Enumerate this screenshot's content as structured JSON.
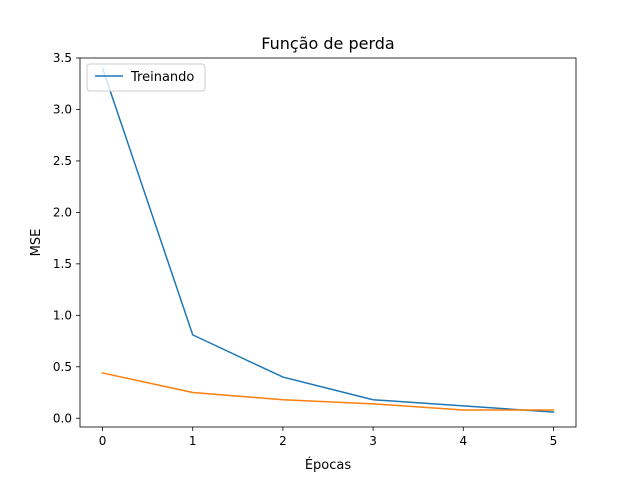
{
  "chart_data": {
    "type": "line",
    "title": "Função de perda",
    "xlabel": "Épocas",
    "ylabel": "MSE",
    "xlim": [
      -0.25,
      5.25
    ],
    "ylim": [
      -0.085,
      3.5
    ],
    "xticks": [
      0,
      1,
      2,
      3,
      4,
      5
    ],
    "xtick_labels": [
      "0",
      "1",
      "2",
      "3",
      "4",
      "5"
    ],
    "yticks": [
      0.0,
      0.5,
      1.0,
      1.5,
      2.0,
      2.5,
      3.0,
      3.5
    ],
    "ytick_labels": [
      "0.0",
      "0.5",
      "1.0",
      "1.5",
      "2.0",
      "2.5",
      "3.0",
      "3.5"
    ],
    "grid": false,
    "legend_position": "top-left",
    "x": [
      0,
      1,
      2,
      3,
      4,
      5
    ],
    "series": [
      {
        "name": "Treinando",
        "color": "#1f77b4",
        "values": [
          3.4,
          0.81,
          0.4,
          0.18,
          0.12,
          0.06
        ]
      },
      {
        "color": "#ff7f0e",
        "values": [
          0.44,
          0.25,
          0.18,
          0.14,
          0.08,
          0.08
        ]
      }
    ]
  }
}
